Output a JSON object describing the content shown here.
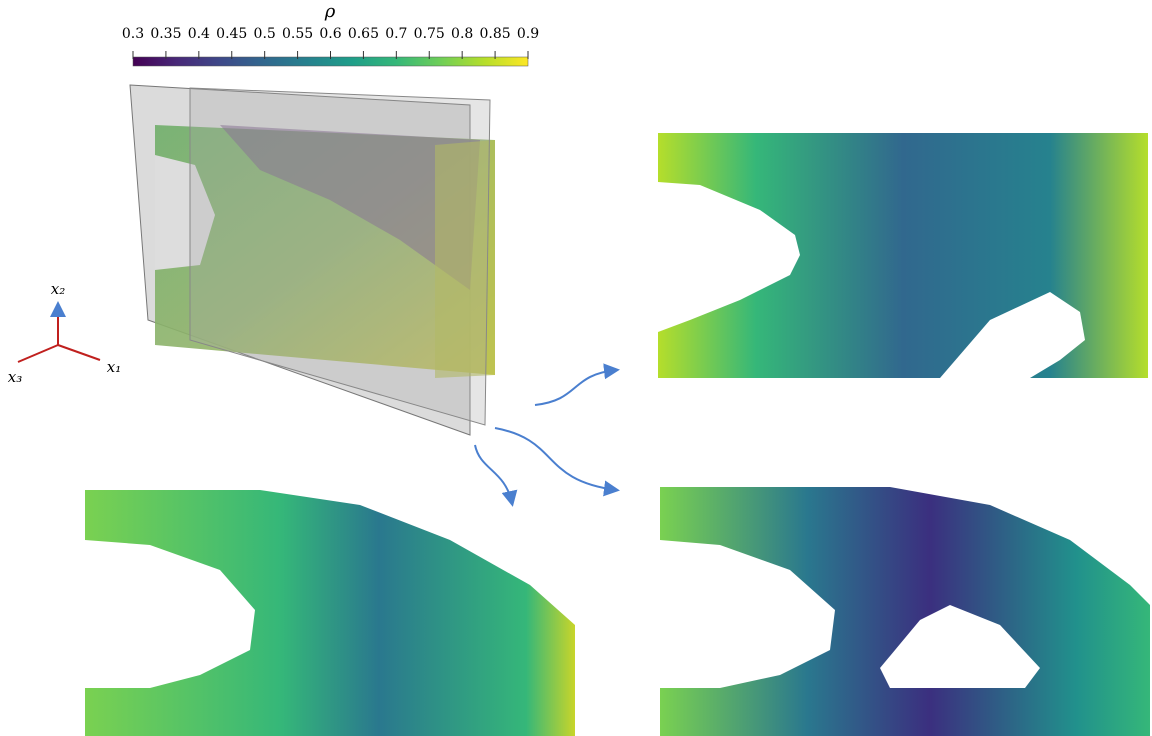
{
  "colorbar": {
    "title": "ρ",
    "range": [
      0.3,
      0.9
    ],
    "ticks": [
      0.3,
      0.35,
      0.4,
      0.45,
      0.5,
      0.55,
      0.6,
      0.65,
      0.7,
      0.75,
      0.8,
      0.85,
      0.9
    ],
    "colormap": "viridis"
  },
  "axes_triad": {
    "x2": "x₂",
    "x1": "x₁",
    "x3": "x₃"
  }
}
